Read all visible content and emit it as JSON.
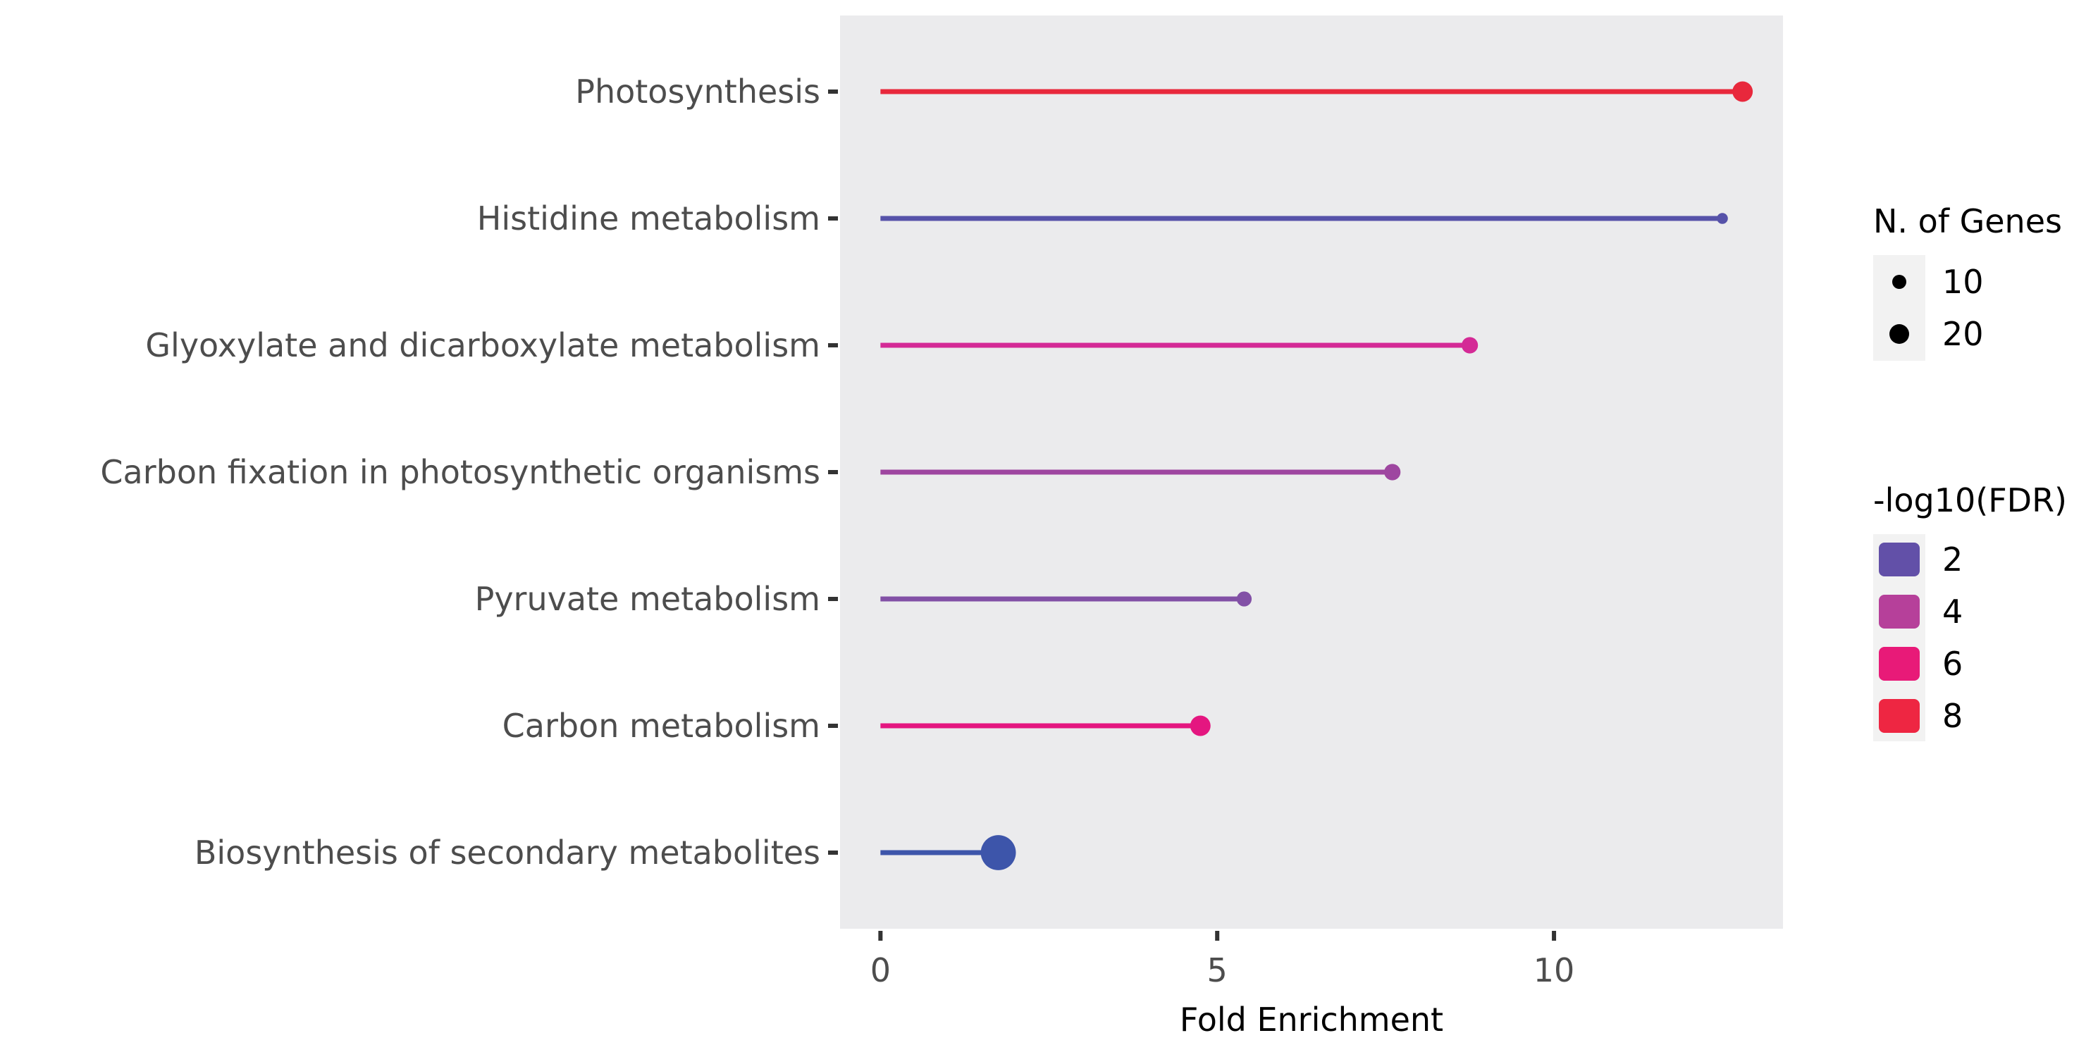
{
  "chart_data": {
    "type": "lollipop",
    "title": "",
    "xlabel": "Fold Enrichment",
    "ylabel": "",
    "xlim": [
      -0.6,
      13.4
    ],
    "xticks": [
      0,
      5,
      10
    ],
    "categories": [
      "Photosynthesis",
      "Histidine metabolism",
      "Glyoxylate and dicarboxylate metabolism",
      "Carbon fixation in photosynthetic organisms",
      "Pyruvate metabolism",
      "Carbon metabolism",
      "Biosynthesis of secondary metabolites"
    ],
    "values": [
      12.8,
      12.5,
      8.75,
      7.6,
      5.4,
      4.75,
      1.75
    ],
    "n_genes": [
      11,
      4,
      8,
      8,
      7,
      11,
      22
    ],
    "neg_log10_fdr": [
      8.5,
      1.0,
      5.3,
      3.5,
      2.6,
      6.2,
      1.1
    ],
    "colors": [
      "#e8283c",
      "#5652a9",
      "#d42a96",
      "#9e46a0",
      "#8250a6",
      "#e41680",
      "#3d55aa"
    ],
    "legend_size": {
      "title": "N. of Genes",
      "labels": [
        "10",
        "20"
      ],
      "values": [
        10,
        20
      ]
    },
    "legend_color": {
      "title": "-log10(FDR)",
      "labels": [
        "2",
        "4",
        "6",
        "8"
      ],
      "colors": [
        "#6250a8",
        "#b6409a",
        "#e81a78",
        "#ee2642"
      ]
    },
    "panel_background": "#ebebed",
    "grid": false,
    "legend_position": "right"
  }
}
